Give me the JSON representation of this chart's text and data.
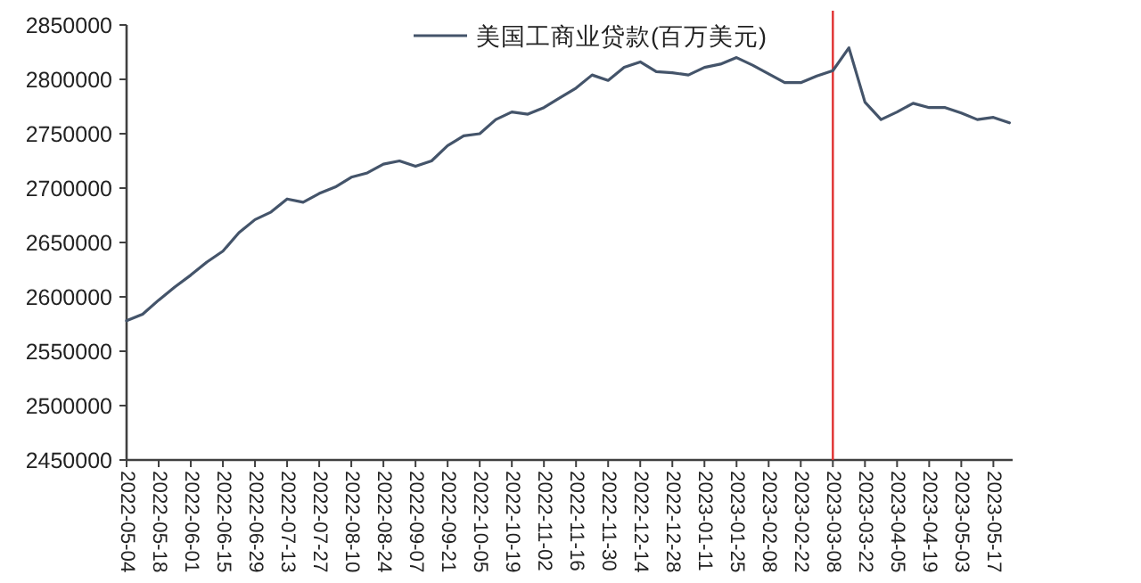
{
  "chart_data": {
    "type": "line",
    "categories": [
      "2022-05-04",
      null,
      "2022-05-18",
      null,
      "2022-06-01",
      null,
      "2022-06-15",
      null,
      "2022-06-29",
      null,
      "2022-07-13",
      null,
      "2022-07-27",
      null,
      "2022-08-10",
      null,
      "2022-08-24",
      null,
      "2022-09-07",
      null,
      "2022-09-21",
      null,
      "2022-10-05",
      null,
      "2022-10-19",
      null,
      "2022-11-02",
      null,
      "2022-11-16",
      null,
      "2022-11-30",
      null,
      "2022-12-14",
      null,
      "2022-12-28",
      null,
      "2023-01-11",
      null,
      "2023-01-25",
      null,
      "2023-02-08",
      null,
      "2023-02-22",
      null,
      "2023-03-08",
      null,
      "2023-03-22",
      null,
      "2023-04-05",
      null,
      "2023-04-19",
      null,
      "2023-05-03",
      null,
      "2023-05-17",
      null
    ],
    "series": [
      {
        "name": "美国工商业贷款(百万美元)",
        "color": "#44546a",
        "values": [
          2578000,
          2584000,
          2597000,
          2609000,
          2620000,
          2632000,
          2642000,
          2659000,
          2671000,
          2678000,
          2690000,
          2687000,
          2695000,
          2701000,
          2710000,
          2714000,
          2722000,
          2725000,
          2720000,
          2725000,
          2739000,
          2748000,
          2750000,
          2763000,
          2770000,
          2768000,
          2774000,
          2783000,
          2792000,
          2804000,
          2799000,
          2811000,
          2816000,
          2807000,
          2806000,
          2804000,
          2811000,
          2814000,
          2820000,
          2813000,
          2805000,
          2797000,
          2797000,
          2803000,
          2808000,
          2829000,
          2779000,
          2763000,
          2770000,
          2778000,
          2774000,
          2774000,
          2769000,
          2763000,
          2765000,
          2760000
        ]
      }
    ],
    "ylim": [
      2450000,
      2850000
    ],
    "yticks": [
      2450000,
      2500000,
      2550000,
      2600000,
      2650000,
      2700000,
      2750000,
      2800000,
      2850000
    ],
    "ref_lines": [
      {
        "axis": "x",
        "value": "2023-03-08",
        "color": "#e03030"
      }
    ],
    "legend": "top",
    "grid": false,
    "marker": "none",
    "line_style": "solid"
  }
}
